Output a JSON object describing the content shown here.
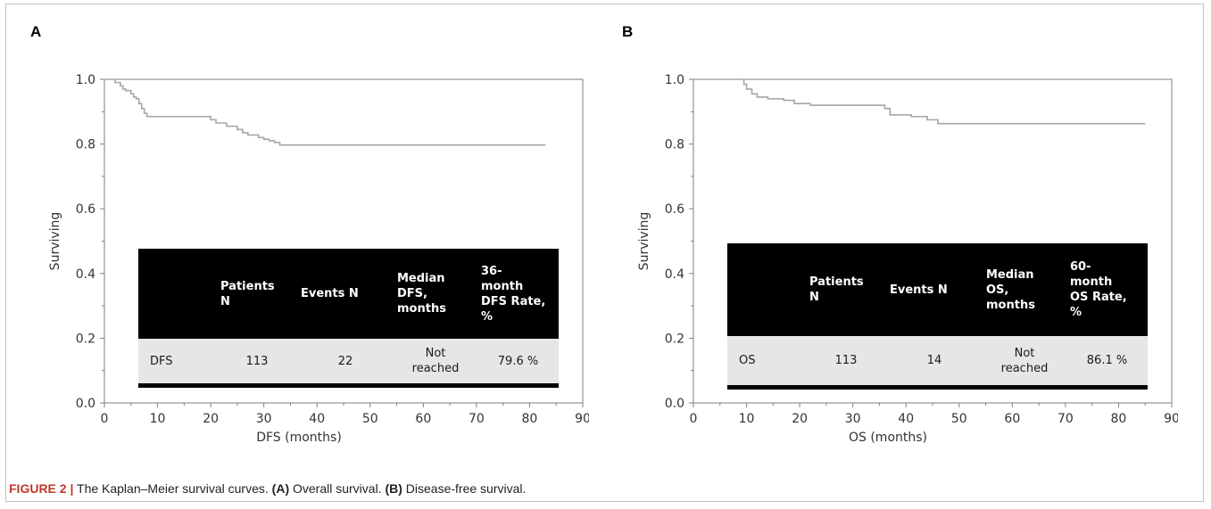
{
  "figure": {
    "caption": {
      "label": "FIGURE 2 |",
      "part1": " The Kaplan–Meier survival curves. ",
      "ref_a": "(A)",
      "part2": " Overall survival. ",
      "ref_b": "(B)",
      "part3": " Disease-free survival."
    }
  },
  "colors": {
    "curve": "#a6a6a6",
    "axis": "#7f7f7f",
    "table_header_bg": "#000000",
    "table_row_bg": "#e6e6e6",
    "caption_label": "#c0392b"
  },
  "panels": [
    {
      "letter": "A",
      "table": {
        "headers": [
          "",
          "Patients\nN",
          "Events N",
          "Median\nDFS,\nmonths",
          "36-\nmonth\nDFS Rate,\n%"
        ],
        "row": [
          "DFS",
          "113",
          "22",
          "Not\nreached",
          "79.6 %"
        ]
      }
    },
    {
      "letter": "B",
      "table": {
        "headers": [
          "",
          "Patients\nN",
          "Events N",
          "Median\nOS,\nmonths",
          "60-\nmonth\nOS Rate,\n%"
        ],
        "row": [
          "OS",
          "113",
          "14",
          "Not\nreached",
          "86.1 %"
        ]
      }
    }
  ],
  "chart_data": [
    {
      "type": "line",
      "step": true,
      "ylabel": "Surviving",
      "xlabel": "DFS (months)",
      "xlim": [
        0,
        90
      ],
      "ylim": [
        0,
        1
      ],
      "xticks": [
        "0",
        "10",
        "20",
        "30",
        "40",
        "50",
        "60",
        "70",
        "80",
        "90"
      ],
      "yticks": [
        "0.0",
        "0.2",
        "0.4",
        "0.6",
        "0.8",
        "1.0"
      ],
      "series": [
        {
          "x": [
            1,
            2,
            3,
            3.5,
            4,
            5,
            5.5,
            6,
            6.5,
            7,
            7.5,
            8,
            20,
            21,
            23,
            25,
            26,
            27,
            29,
            30,
            31,
            32,
            33,
            83
          ],
          "y": [
            1.0,
            0.99,
            0.98,
            0.97,
            0.965,
            0.955,
            0.945,
            0.94,
            0.925,
            0.91,
            0.895,
            0.885,
            0.875,
            0.865,
            0.855,
            0.845,
            0.835,
            0.828,
            0.82,
            0.815,
            0.81,
            0.805,
            0.797,
            0.797
          ]
        }
      ]
    },
    {
      "type": "line",
      "step": true,
      "ylabel": "Surviving",
      "xlabel": "OS (months)",
      "xlim": [
        0,
        90
      ],
      "ylim": [
        0,
        1
      ],
      "xticks": [
        "0",
        "10",
        "20",
        "30",
        "40",
        "50",
        "60",
        "70",
        "80",
        "90"
      ],
      "yticks": [
        "0.0",
        "0.2",
        "0.4",
        "0.6",
        "0.8",
        "1.0"
      ],
      "series": [
        {
          "x": [
            9,
            9.5,
            10,
            11,
            12,
            14,
            17,
            19,
            22,
            36,
            37,
            41,
            44,
            46,
            85
          ],
          "y": [
            1.0,
            0.985,
            0.97,
            0.955,
            0.945,
            0.94,
            0.935,
            0.925,
            0.92,
            0.91,
            0.89,
            0.885,
            0.875,
            0.863,
            0.863
          ]
        }
      ]
    }
  ]
}
